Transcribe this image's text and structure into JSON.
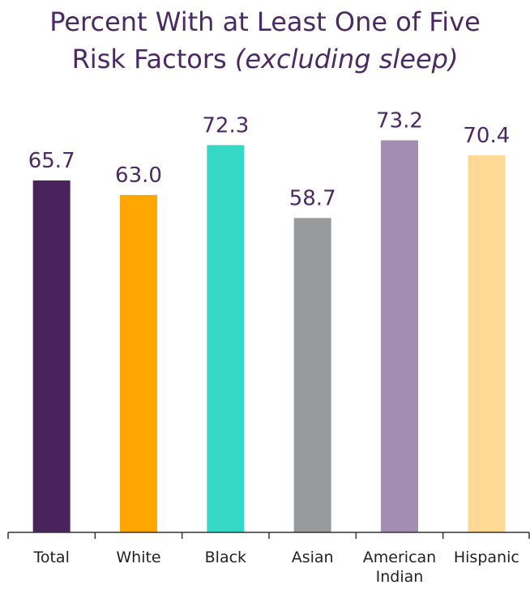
{
  "chart_data": {
    "type": "bar",
    "title": "Percent With at Least One of Five Risk Factors",
    "title_italic": "(excluding sleep)",
    "categories": [
      "Total",
      "White",
      "Black",
      "Asian",
      "American Indian",
      "Hispanic"
    ],
    "category_lines": [
      [
        "Total"
      ],
      [
        "White"
      ],
      [
        "Black"
      ],
      [
        "Asian"
      ],
      [
        "American",
        "Indian"
      ],
      [
        "Hispanic"
      ]
    ],
    "values": [
      65.7,
      63.0,
      72.3,
      58.7,
      73.2,
      70.4
    ],
    "value_labels": [
      "65.7",
      "63.0",
      "72.3",
      "58.7",
      "73.2",
      "70.4"
    ],
    "colors": [
      "#4a235c",
      "#ffa600",
      "#35d8c4",
      "#999a9c",
      "#a48db3",
      "#ffd995"
    ],
    "ylim": [
      0,
      100
    ],
    "grid": false,
    "legend": "none"
  }
}
